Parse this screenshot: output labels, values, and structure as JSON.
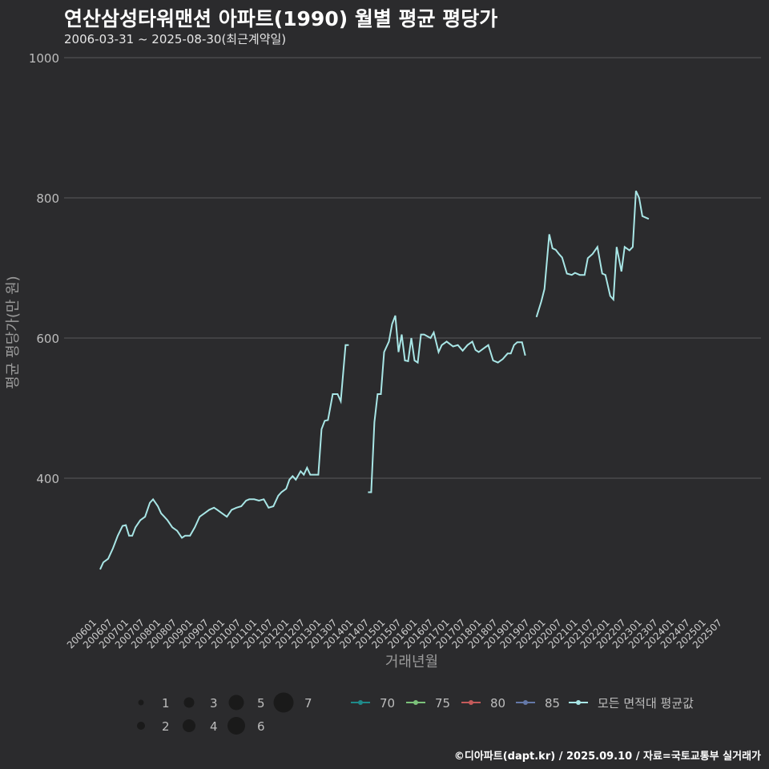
{
  "title": "연산삼성타워맨션 아파트(1990) 월별 평균 평당가",
  "subtitle": "2006-03-31 ~ 2025-08-30(최근계약일)",
  "footer": "©디아파트(dapt.kr) / 2025.09.10 / 자료=국토교통부 실거래가",
  "chart_data": {
    "type": "line",
    "xlabel": "거래년월",
    "ylabel": "평균 평당가(만 원)",
    "ylim": [
      180,
      1000
    ],
    "yticks": [
      400,
      600,
      800,
      1000
    ],
    "x_tick_labels": [
      "200601",
      "200607",
      "200701",
      "200707",
      "200801",
      "200807",
      "200901",
      "200907",
      "201001",
      "201007",
      "201101",
      "201107",
      "201201",
      "201207",
      "201301",
      "201307",
      "201401",
      "201407",
      "201501",
      "201507",
      "201601",
      "201607",
      "201701",
      "201707",
      "201801",
      "201807",
      "201901",
      "201907",
      "202001",
      "202007",
      "202101",
      "202107",
      "202201",
      "202207",
      "202301",
      "202307",
      "202401",
      "202407",
      "202501",
      "202507"
    ],
    "colors": {
      "background": "#2b2b2d",
      "grid": "#5a5a5c",
      "line": "#a8e6e6",
      "70": "#1f8a8a",
      "75": "#7cc27a",
      "80": "#c45a5a",
      "85": "#6478a8"
    },
    "size_legend": [
      1,
      2,
      3,
      4,
      5,
      6,
      7
    ],
    "color_legend": [
      {
        "key": "70",
        "label": "70"
      },
      {
        "key": "75",
        "label": "75"
      },
      {
        "key": "80",
        "label": "80"
      },
      {
        "key": "85",
        "label": "85"
      },
      {
        "key": "line",
        "label": "모든 면적대 평균값"
      }
    ],
    "series": [
      {
        "name": "모든 면적대 평균값",
        "segments": [
          [
            [
              2006.2,
              270
            ],
            [
              2006.3,
              280
            ],
            [
              2006.45,
              285
            ],
            [
              2006.6,
              300
            ],
            [
              2006.75,
              318
            ],
            [
              2006.9,
              332
            ],
            [
              2007.0,
              333
            ],
            [
              2007.1,
              318
            ],
            [
              2007.2,
              318
            ],
            [
              2007.3,
              330
            ],
            [
              2007.45,
              340
            ],
            [
              2007.6,
              345
            ],
            [
              2007.75,
              365
            ],
            [
              2007.85,
              370
            ],
            [
              2008.0,
              360
            ],
            [
              2008.1,
              350
            ],
            [
              2008.2,
              345
            ],
            [
              2008.3,
              340
            ],
            [
              2008.45,
              330
            ],
            [
              2008.6,
              325
            ],
            [
              2008.75,
              315
            ],
            [
              2008.85,
              318
            ],
            [
              2009.0,
              318
            ],
            [
              2009.15,
              330
            ],
            [
              2009.3,
              345
            ],
            [
              2009.45,
              350
            ],
            [
              2009.6,
              355
            ],
            [
              2009.75,
              358
            ],
            [
              2009.85,
              355
            ],
            [
              2010.0,
              350
            ],
            [
              2010.15,
              345
            ],
            [
              2010.3,
              355
            ],
            [
              2010.45,
              358
            ],
            [
              2010.6,
              360
            ],
            [
              2010.75,
              368
            ],
            [
              2010.85,
              370
            ],
            [
              2011.0,
              370
            ],
            [
              2011.15,
              368
            ],
            [
              2011.3,
              370
            ],
            [
              2011.45,
              358
            ],
            [
              2011.6,
              360
            ],
            [
              2011.75,
              375
            ],
            [
              2011.85,
              380
            ],
            [
              2012.0,
              385
            ],
            [
              2012.1,
              398
            ],
            [
              2012.2,
              403
            ],
            [
              2012.3,
              398
            ],
            [
              2012.45,
              410
            ],
            [
              2012.55,
              405
            ],
            [
              2012.65,
              415
            ],
            [
              2012.75,
              405
            ],
            [
              2012.85,
              405
            ],
            [
              2013.0,
              405
            ],
            [
              2013.1,
              470
            ],
            [
              2013.2,
              482
            ],
            [
              2013.3,
              483
            ],
            [
              2013.45,
              520
            ],
            [
              2013.6,
              520
            ],
            [
              2013.7,
              510
            ],
            [
              2013.85,
              590
            ],
            [
              2013.95,
              590
            ]
          ],
          [
            [
              2014.55,
              380
            ],
            [
              2014.65,
              380
            ],
            [
              2014.75,
              480
            ],
            [
              2014.85,
              520
            ],
            [
              2014.95,
              520
            ],
            [
              2015.05,
              580
            ],
            [
              2015.2,
              595
            ],
            [
              2015.3,
              620
            ],
            [
              2015.4,
              632
            ],
            [
              2015.5,
              580
            ],
            [
              2015.6,
              605
            ],
            [
              2015.7,
              568
            ],
            [
              2015.8,
              567
            ],
            [
              2015.9,
              600
            ],
            [
              2016.0,
              568
            ],
            [
              2016.1,
              565
            ],
            [
              2016.2,
              605
            ],
            [
              2016.3,
              605
            ],
            [
              2016.5,
              600
            ],
            [
              2016.6,
              608
            ],
            [
              2016.75,
              580
            ],
            [
              2016.85,
              590
            ],
            [
              2017.0,
              595
            ],
            [
              2017.2,
              588
            ],
            [
              2017.35,
              590
            ],
            [
              2017.5,
              582
            ],
            [
              2017.65,
              590
            ],
            [
              2017.8,
              595
            ],
            [
              2017.9,
              583
            ],
            [
              2018.0,
              580
            ],
            [
              2018.15,
              585
            ],
            [
              2018.3,
              590
            ],
            [
              2018.45,
              568
            ],
            [
              2018.6,
              565
            ],
            [
              2018.75,
              570
            ],
            [
              2018.9,
              578
            ],
            [
              2019.0,
              578
            ],
            [
              2019.1,
              590
            ],
            [
              2019.2,
              594
            ],
            [
              2019.35,
              594
            ],
            [
              2019.45,
              575
            ]
          ],
          [
            [
              2019.8,
              630
            ],
            [
              2019.95,
              652
            ],
            [
              2020.05,
              670
            ],
            [
              2020.2,
              748
            ],
            [
              2020.3,
              728
            ],
            [
              2020.4,
              726
            ],
            [
              2020.5,
              720
            ],
            [
              2020.6,
              715
            ],
            [
              2020.75,
              692
            ],
            [
              2020.9,
              690
            ],
            [
              2021.0,
              693
            ],
            [
              2021.15,
              690
            ],
            [
              2021.3,
              690
            ],
            [
              2021.4,
              714
            ],
            [
              2021.55,
              720
            ],
            [
              2021.7,
              730
            ],
            [
              2021.85,
              692
            ],
            [
              2021.95,
              690
            ],
            [
              2022.1,
              660
            ],
            [
              2022.2,
              655
            ],
            [
              2022.3,
              730
            ],
            [
              2022.45,
              695
            ],
            [
              2022.55,
              730
            ],
            [
              2022.7,
              725
            ],
            [
              2022.8,
              730
            ],
            [
              2022.9,
              810
            ],
            [
              2023.0,
              800
            ],
            [
              2023.1,
              774
            ],
            [
              2023.3,
              770
            ]
          ]
        ]
      }
    ]
  }
}
